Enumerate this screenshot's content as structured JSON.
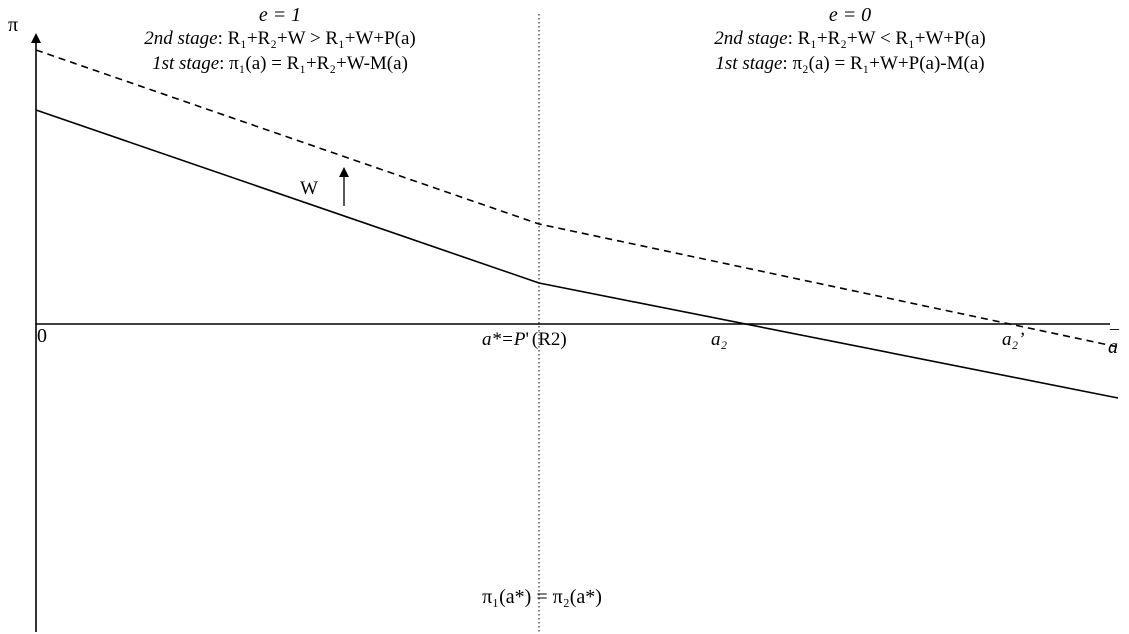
{
  "axes": {
    "y_label": "π",
    "x_label": "a",
    "x_bar": "–",
    "origin": "0"
  },
  "left_region": {
    "header": "e = 1",
    "stage2_lead": "2nd stage",
    "stage2_eq": ": R₁+R₂+W > R₁+W+P(a)",
    "stage1_lead": "1st stage",
    "stage1_eq": ": π₁(a) = R₁+R₂+W-M(a)"
  },
  "right_region": {
    "header": "e = 0",
    "stage2_lead": "2nd stage",
    "stage2_eq": ": R₁+R₂+W < R₁+W+P(a)",
    "stage1_lead": "1st stage",
    "stage1_eq": ": π₂(a) = R₁+W+P(a)-M(a)"
  },
  "labels": {
    "a_star": "a*=P",
    "a_star_prime": "'",
    "a_star_arg": "(R2)",
    "a2": "a₂",
    "a2_prime": "a₂’",
    "shift": "W",
    "bottom_eq": "π₁(a*) = π₂(a*)"
  }
}
